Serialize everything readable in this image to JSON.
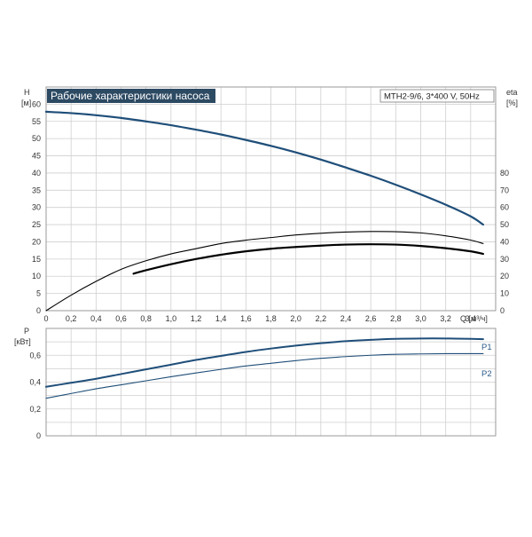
{
  "chart_data": [
    {
      "type": "line",
      "title": "Рабочие характеристики насоса",
      "model_label": "MTH2-9/6, 3*400 V, 50Hz",
      "xlabel": "Q [м³/ч]",
      "ylabel": "H",
      "ylabel_unit": "[м]",
      "y2label": "eta",
      "y2label_unit": "[%]",
      "xlim": [
        0,
        3.6
      ],
      "ylim": [
        0,
        65
      ],
      "y2lim": [
        0,
        130
      ],
      "x_ticks": [
        "0",
        "0,2",
        "0,4",
        "0,6",
        "0,8",
        "1,0",
        "1,2",
        "1,4",
        "1,6",
        "1,8",
        "2,0",
        "2,2",
        "2,4",
        "2,6",
        "2,8",
        "3,0",
        "3,2",
        "3,4"
      ],
      "y_ticks": [
        "0",
        "5",
        "10",
        "15",
        "20",
        "25",
        "30",
        "35",
        "40",
        "45",
        "50",
        "55",
        "60"
      ],
      "y2_ticks": [
        "0",
        "10",
        "20",
        "30",
        "40",
        "50",
        "60",
        "70",
        "80"
      ],
      "grid": true,
      "series": [
        {
          "axis": "left",
          "color": "#1f4e79",
          "x": [
            0,
            0.2,
            0.4,
            0.6,
            0.8,
            1.0,
            1.2,
            1.4,
            1.6,
            1.8,
            2.0,
            2.2,
            2.4,
            2.6,
            2.8,
            3.0,
            3.2,
            3.4,
            3.5
          ],
          "y": [
            57.8,
            57.4,
            56.8,
            56.0,
            55.0,
            53.9,
            52.6,
            51.2,
            49.6,
            47.9,
            46.0,
            43.9,
            41.6,
            39.2,
            36.6,
            33.8,
            30.8,
            27.4,
            25.0
          ]
        },
        {
          "axis": "right",
          "color": "#000000",
          "x": [
            0,
            0.2,
            0.4,
            0.6,
            0.8,
            1.0,
            1.2,
            1.4,
            1.6,
            1.8,
            2.0,
            2.2,
            2.4,
            2.6,
            2.8,
            3.0,
            3.2,
            3.4,
            3.5
          ],
          "y": [
            0,
            9,
            17,
            24,
            29,
            33,
            36,
            39,
            41,
            42.5,
            44,
            45,
            45.7,
            46,
            45.9,
            45.2,
            43.5,
            41,
            39
          ]
        },
        {
          "axis": "right",
          "color": "#000000",
          "x": [
            0.7,
            0.8,
            1.0,
            1.2,
            1.4,
            1.6,
            1.8,
            2.0,
            2.2,
            2.4,
            2.6,
            2.8,
            3.0,
            3.2,
            3.4,
            3.5
          ],
          "y": [
            21.5,
            23.5,
            27,
            30,
            32.5,
            34.5,
            36,
            37,
            37.8,
            38.4,
            38.6,
            38.4,
            37.6,
            36.3,
            34.5,
            33
          ]
        }
      ]
    },
    {
      "type": "line",
      "ylabel": "P",
      "ylabel_unit": "[кВт]",
      "xlim": [
        0,
        3.6
      ],
      "ylim": [
        0,
        0.8
      ],
      "y_ticks": [
        "0",
        "0,2",
        "0,4",
        "0,6"
      ],
      "grid": true,
      "series": [
        {
          "name": "P1",
          "color": "#1f4e79",
          "x": [
            0,
            0.2,
            0.4,
            0.6,
            0.8,
            1.0,
            1.2,
            1.4,
            1.6,
            1.8,
            2.0,
            2.2,
            2.4,
            2.6,
            2.8,
            3.0,
            3.2,
            3.4,
            3.5
          ],
          "y": [
            0.365,
            0.395,
            0.425,
            0.46,
            0.495,
            0.53,
            0.565,
            0.595,
            0.625,
            0.65,
            0.672,
            0.69,
            0.705,
            0.715,
            0.722,
            0.725,
            0.725,
            0.722,
            0.72
          ]
        },
        {
          "name": "P2",
          "color": "#1f4e79",
          "x": [
            0,
            0.2,
            0.4,
            0.6,
            0.8,
            1.0,
            1.2,
            1.4,
            1.6,
            1.8,
            2.0,
            2.2,
            2.4,
            2.6,
            2.8,
            3.0,
            3.2,
            3.4,
            3.5
          ],
          "y": [
            0.28,
            0.315,
            0.35,
            0.38,
            0.41,
            0.44,
            0.468,
            0.495,
            0.52,
            0.54,
            0.56,
            0.577,
            0.59,
            0.6,
            0.607,
            0.61,
            0.612,
            0.612,
            0.612
          ]
        }
      ]
    }
  ]
}
